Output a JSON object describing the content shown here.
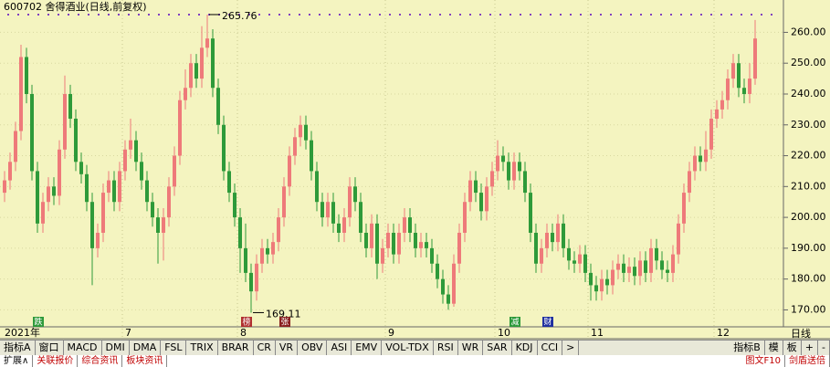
{
  "chart_data": {
    "type": "candlestick",
    "title": "600702 舍得酒业(日线,前复权)",
    "period_label": "日线",
    "ylim": [
      164.8,
      269.6
    ],
    "yticks": [
      {
        "value": 170,
        "label": "170.00"
      },
      {
        "value": 180,
        "label": "180.00"
      },
      {
        "value": 190,
        "label": "190.00"
      },
      {
        "value": 200,
        "label": "200.00"
      },
      {
        "value": 210,
        "label": "210.00"
      },
      {
        "value": 220,
        "label": "220.00"
      },
      {
        "value": 230,
        "label": "230.00"
      },
      {
        "value": 240,
        "label": "240.00"
      },
      {
        "value": 250,
        "label": "250.00"
      },
      {
        "value": 260,
        "label": "260.00"
      }
    ],
    "grid": true,
    "up_color": "#ee7a7a",
    "down_color": "#2e9a3a",
    "max_index": 37,
    "min_index": 45,
    "categories": [
      "2021年",
      null,
      null,
      null,
      null,
      null,
      null,
      null,
      null,
      null,
      null,
      null,
      null,
      null,
      null,
      null,
      null,
      null,
      null,
      null,
      null,
      null,
      "7",
      null,
      null,
      null,
      null,
      null,
      null,
      null,
      null,
      null,
      null,
      null,
      null,
      null,
      null,
      null,
      null,
      null,
      null,
      null,
      null,
      "8",
      null,
      null,
      null,
      null,
      null,
      null,
      null,
      null,
      null,
      null,
      null,
      null,
      null,
      null,
      null,
      null,
      null,
      null,
      null,
      null,
      null,
      null,
      null,
      null,
      null,
      null,
      "9",
      null,
      null,
      null,
      null,
      null,
      null,
      null,
      null,
      null,
      null,
      null,
      null,
      null,
      null,
      null,
      null,
      null,
      null,
      null,
      "10",
      null,
      null,
      null,
      null,
      null,
      null,
      null,
      null,
      null,
      null,
      null,
      null,
      null,
      null,
      null,
      null,
      "11",
      null,
      null,
      null,
      null,
      null,
      null,
      null,
      null,
      null,
      null,
      null,
      null,
      null,
      null,
      null,
      null,
      null,
      null,
      null,
      null,
      null,
      null,
      "12",
      null,
      null,
      null,
      null,
      null,
      null,
      null
    ],
    "candles": [
      [
        208,
        215,
        205,
        212
      ],
      [
        212,
        221,
        209,
        218
      ],
      [
        218,
        231,
        215,
        228
      ],
      [
        228,
        256,
        225,
        252
      ],
      [
        252,
        255,
        237,
        240
      ],
      [
        240,
        243,
        212,
        215
      ],
      [
        215,
        218,
        195,
        198
      ],
      [
        198,
        208,
        195,
        205
      ],
      [
        205,
        213,
        202,
        210
      ],
      [
        210,
        213,
        204,
        207
      ],
      [
        207,
        225,
        204,
        222
      ],
      [
        222,
        246,
        219,
        240
      ],
      [
        240,
        243,
        229,
        232
      ],
      [
        232,
        235,
        215,
        218
      ],
      [
        218,
        221,
        211,
        214
      ],
      [
        214,
        217,
        202,
        205
      ],
      [
        205,
        208,
        178,
        190
      ],
      [
        190,
        198,
        187,
        195
      ],
      [
        195,
        211,
        192,
        208
      ],
      [
        208,
        215,
        205,
        212
      ],
      [
        212,
        215,
        202,
        205
      ],
      [
        205,
        218,
        202,
        215
      ],
      [
        215,
        225,
        212,
        222
      ],
      [
        222,
        232,
        219,
        225
      ],
      [
        225,
        228,
        215,
        218
      ],
      [
        218,
        221,
        209,
        212
      ],
      [
        212,
        215,
        202,
        205
      ],
      [
        205,
        208,
        197,
        200
      ],
      [
        200,
        203,
        185,
        195
      ],
      [
        195,
        203,
        186,
        200
      ],
      [
        200,
        213,
        197,
        210
      ],
      [
        210,
        223,
        207,
        220
      ],
      [
        220,
        241,
        217,
        238
      ],
      [
        238,
        248,
        235,
        242
      ],
      [
        242,
        253,
        239,
        250
      ],
      [
        250,
        253,
        242,
        245
      ],
      [
        245,
        262,
        242,
        255
      ],
      [
        255,
        265.76,
        252,
        258
      ],
      [
        258,
        261,
        239,
        242
      ],
      [
        242,
        245,
        227,
        230
      ],
      [
        230,
        233,
        212,
        215
      ],
      [
        215,
        218,
        205,
        208
      ],
      [
        208,
        211,
        197,
        200
      ],
      [
        200,
        203,
        182,
        190
      ],
      [
        190,
        198,
        179,
        182
      ],
      [
        182,
        185,
        169.11,
        176
      ],
      [
        176,
        188,
        173,
        185
      ],
      [
        185,
        193,
        182,
        190
      ],
      [
        190,
        193,
        185,
        188
      ],
      [
        188,
        195,
        185,
        192
      ],
      [
        192,
        203,
        189,
        200
      ],
      [
        200,
        213,
        197,
        210
      ],
      [
        210,
        223,
        207,
        220
      ],
      [
        220,
        229,
        217,
        226
      ],
      [
        226,
        233,
        223,
        230
      ],
      [
        230,
        233,
        222,
        225
      ],
      [
        225,
        228,
        212,
        215
      ],
      [
        215,
        218,
        202,
        205
      ],
      [
        205,
        208,
        197,
        200
      ],
      [
        200,
        208,
        197,
        205
      ],
      [
        205,
        208,
        195,
        198
      ],
      [
        198,
        201,
        192,
        195
      ],
      [
        195,
        203,
        192,
        200
      ],
      [
        200,
        213,
        197,
        210
      ],
      [
        210,
        213,
        202,
        205
      ],
      [
        205,
        208,
        192,
        195
      ],
      [
        195,
        198,
        187,
        190
      ],
      [
        190,
        201,
        187,
        198
      ],
      [
        198,
        201,
        180,
        185
      ],
      [
        185,
        193,
        182,
        190
      ],
      [
        190,
        198,
        187,
        195
      ],
      [
        195,
        198,
        185,
        188
      ],
      [
        188,
        198,
        185,
        195
      ],
      [
        195,
        203,
        192,
        200
      ],
      [
        200,
        203,
        192,
        195
      ],
      [
        195,
        198,
        187,
        190
      ],
      [
        190,
        195,
        187,
        192
      ],
      [
        192,
        195,
        187,
        190
      ],
      [
        190,
        193,
        182,
        185
      ],
      [
        185,
        188,
        177,
        180
      ],
      [
        180,
        183,
        172,
        175
      ],
      [
        175,
        178,
        170,
        172
      ],
      [
        172,
        188,
        171,
        185
      ],
      [
        185,
        198,
        182,
        195
      ],
      [
        195,
        208,
        192,
        205
      ],
      [
        205,
        215,
        202,
        212
      ],
      [
        212,
        215,
        205,
        208
      ],
      [
        208,
        211,
        199,
        202
      ],
      [
        202,
        213,
        199,
        210
      ],
      [
        210,
        218,
        207,
        215
      ],
      [
        215,
        225,
        212,
        220
      ],
      [
        220,
        223,
        215,
        218
      ],
      [
        218,
        221,
        209,
        212
      ],
      [
        212,
        221,
        209,
        218
      ],
      [
        218,
        221,
        212,
        215
      ],
      [
        215,
        218,
        205,
        208
      ],
      [
        208,
        211,
        192,
        195
      ],
      [
        195,
        198,
        182,
        185
      ],
      [
        185,
        193,
        182,
        190
      ],
      [
        190,
        198,
        187,
        195
      ],
      [
        195,
        198,
        189,
        192
      ],
      [
        192,
        201,
        189,
        198
      ],
      [
        198,
        201,
        187,
        190
      ],
      [
        190,
        193,
        183,
        186
      ],
      [
        186,
        189,
        182,
        185
      ],
      [
        185,
        191,
        182,
        188
      ],
      [
        188,
        191,
        179,
        182
      ],
      [
        182,
        185,
        173,
        178
      ],
      [
        178,
        181,
        173,
        176
      ],
      [
        176,
        183,
        173,
        180
      ],
      [
        180,
        183,
        175,
        178
      ],
      [
        178,
        186,
        175,
        183
      ],
      [
        183,
        188,
        180,
        185
      ],
      [
        185,
        188,
        179,
        182
      ],
      [
        182,
        187,
        179,
        184
      ],
      [
        184,
        187,
        178,
        181
      ],
      [
        181,
        189,
        178,
        186
      ],
      [
        186,
        189,
        179,
        182
      ],
      [
        182,
        193,
        179,
        190
      ],
      [
        190,
        193,
        183,
        186
      ],
      [
        186,
        189,
        180,
        183
      ],
      [
        183,
        186,
        179,
        182
      ],
      [
        182,
        191,
        179,
        188
      ],
      [
        188,
        201,
        185,
        198
      ],
      [
        198,
        211,
        195,
        208
      ],
      [
        208,
        218,
        205,
        215
      ],
      [
        215,
        223,
        212,
        220
      ],
      [
        220,
        223,
        215,
        218
      ],
      [
        218,
        228,
        215,
        222
      ],
      [
        222,
        235,
        219,
        232
      ],
      [
        232,
        238,
        229,
        235
      ],
      [
        235,
        241,
        232,
        238
      ],
      [
        238,
        248,
        235,
        245
      ],
      [
        245,
        253,
        242,
        250
      ],
      [
        250,
        253,
        239,
        242
      ],
      [
        242,
        245,
        237,
        240
      ],
      [
        240,
        250,
        237,
        245
      ],
      [
        245,
        264,
        243,
        258
      ]
    ],
    "events": [
      {
        "index": 6,
        "label": "跌",
        "color": "#2e9a3a"
      },
      {
        "index": 44,
        "label": "榜",
        "color": "#b03030"
      },
      {
        "index": 51,
        "label": "张",
        "color": "#8a2020"
      },
      {
        "index": 93,
        "label": "减",
        "color": "#2e9a3a"
      },
      {
        "index": 99,
        "label": "财",
        "color": "#2030a0"
      }
    ]
  },
  "toolbar": {
    "tabs": [
      "指标A",
      "窗口",
      "MACD",
      "DMI",
      "DMA",
      "FSL",
      "TRIX",
      "BRAR",
      "CR",
      "VR",
      "OBV",
      "ASI",
      "EMV",
      "VOL-TDX",
      "RSI",
      "WR",
      "SAR",
      "KDJ",
      "CCI",
      ">"
    ],
    "right": [
      "指标B",
      "模",
      "板",
      "+",
      "-"
    ],
    "bottom_tabs": [
      "扩展∧",
      "关联报价",
      "综合资讯",
      "板块资讯"
    ],
    "bottom_right": [
      "图文F10",
      "剑盾送倍"
    ]
  }
}
